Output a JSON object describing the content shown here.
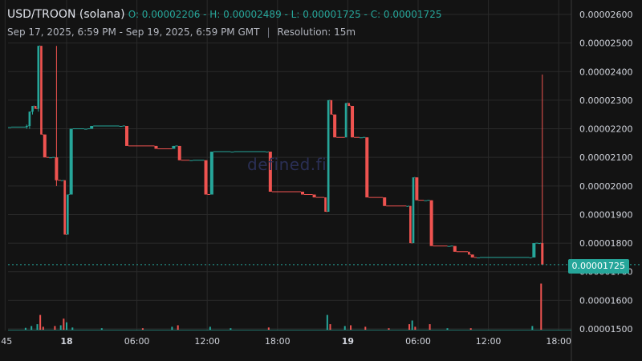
{
  "header": {
    "pair": "USD/TROON (solana)",
    "ohlc": "O: 0.00002206 - H: 0.00002489 - L: 0.00001725 - C: 0.00001725",
    "date_range": "Sep 17, 2025, 6:59 PM - Sep 19, 2025, 6:59 PM GMT",
    "separator": "|",
    "resolution": "Resolution: 15m"
  },
  "watermark": "defined.fi",
  "last_price_label": "0.00001725",
  "colors": {
    "up": "#26a69a",
    "down": "#ef5350",
    "bg": "#131313",
    "grid": "#2a2a2a",
    "axis_text": "#d1d4dc"
  },
  "chart_data": {
    "type": "candlestick",
    "title": "USD/TROON (solana)",
    "resolution": "15m",
    "ylim": [
      1.5e-05,
      2.62e-05
    ],
    "y_ticks": [
      "0.00001500",
      "0.00001600",
      "0.00001700",
      "0.00001800",
      "0.00001900",
      "0.00002000",
      "0.00002100",
      "0.00002200",
      "0.00002300",
      "0.00002400",
      "0.00002500",
      "0.00002600"
    ],
    "y_tick_values": [
      1.5e-05,
      1.6e-05,
      1.7e-05,
      1.8e-05,
      1.9e-05,
      2e-05,
      2.1e-05,
      2.2e-05,
      2.3e-05,
      2.4e-05,
      2.5e-05,
      2.6e-05
    ],
    "x_ticks": [
      ":45",
      "18",
      "06:00",
      "12:00",
      "18:00",
      "19",
      "06:00",
      "12:00",
      "18:00"
    ],
    "x_tick_hours": [
      -0.25,
      5,
      11,
      17,
      23,
      29,
      35,
      41,
      47
    ],
    "bold_x_ticks": [
      "18",
      "19"
    ],
    "last_price": 1.725e-05,
    "grid": true,
    "candles": [
      {
        "h": 0,
        "o": 2.206e-05,
        "hi": 2.206e-05,
        "lo": 2.206e-05,
        "c": 2.206e-05
      },
      {
        "h": 1.5,
        "o": 2.206e-05,
        "hi": 2.215e-05,
        "lo": 2.2e-05,
        "c": 2.21e-05
      },
      {
        "h": 1.75,
        "o": 2.21e-05,
        "hi": 2.26e-05,
        "lo": 2.2e-05,
        "c": 2.26e-05
      },
      {
        "h": 2.0,
        "o": 2.26e-05,
        "hi": 2.28e-05,
        "lo": 2.25e-05,
        "c": 2.28e-05
      },
      {
        "h": 2.25,
        "o": 2.28e-05,
        "hi": 2.28e-05,
        "lo": 2.27e-05,
        "c": 2.27e-05
      },
      {
        "h": 2.5,
        "o": 2.27e-05,
        "hi": 2.49e-05,
        "lo": 2.26e-05,
        "c": 2.49e-05
      },
      {
        "h": 2.75,
        "o": 2.49e-05,
        "hi": 2.49e-05,
        "lo": 2.18e-05,
        "c": 2.18e-05
      },
      {
        "h": 3.0,
        "o": 2.18e-05,
        "hi": 2.18e-05,
        "lo": 2.1e-05,
        "c": 2.1e-05
      },
      {
        "h": 3.5,
        "o": 2.1e-05,
        "hi": 2.1e-05,
        "lo": 2.1e-05,
        "c": 2.1e-05
      },
      {
        "h": 4.0,
        "o": 2.1e-05,
        "hi": 2.49e-05,
        "lo": 2e-05,
        "c": 2.02e-05
      },
      {
        "h": 4.5,
        "o": 2.02e-05,
        "hi": 2.02e-05,
        "lo": 2.02e-05,
        "c": 2.02e-05
      },
      {
        "h": 4.75,
        "o": 2.02e-05,
        "hi": 2.02e-05,
        "lo": 1.83e-05,
        "c": 1.83e-05
      },
      {
        "h": 5.0,
        "o": 1.83e-05,
        "hi": 1.97e-05,
        "lo": 1.83e-05,
        "c": 1.97e-05
      },
      {
        "h": 5.25,
        "o": 1.97e-05,
        "hi": 2.2e-05,
        "lo": 1.97e-05,
        "c": 2.2e-05
      },
      {
        "h": 6.5,
        "o": 2.2e-05,
        "hi": 2.2e-05,
        "lo": 2.2e-05,
        "c": 2.2e-05
      },
      {
        "h": 7.0,
        "o": 2.2e-05,
        "hi": 2.21e-05,
        "lo": 2.2e-05,
        "c": 2.21e-05
      },
      {
        "h": 9.5,
        "o": 2.21e-05,
        "hi": 2.21e-05,
        "lo": 2.21e-05,
        "c": 2.21e-05
      },
      {
        "h": 10.0,
        "o": 2.21e-05,
        "hi": 2.21e-05,
        "lo": 2.14e-05,
        "c": 2.14e-05
      },
      {
        "h": 12.5,
        "o": 2.14e-05,
        "hi": 2.14e-05,
        "lo": 2.13e-05,
        "c": 2.13e-05
      },
      {
        "h": 14.0,
        "o": 2.13e-05,
        "hi": 2.14e-05,
        "lo": 2.13e-05,
        "c": 2.14e-05
      },
      {
        "h": 14.5,
        "o": 2.14e-05,
        "hi": 2.14e-05,
        "lo": 2.09e-05,
        "c": 2.09e-05
      },
      {
        "h": 15.5,
        "o": 2.09e-05,
        "hi": 2.09e-05,
        "lo": 2.09e-05,
        "c": 2.09e-05
      },
      {
        "h": 16.75,
        "o": 2.09e-05,
        "hi": 2.09e-05,
        "lo": 1.97e-05,
        "c": 1.97e-05
      },
      {
        "h": 17.25,
        "o": 1.97e-05,
        "hi": 2.12e-05,
        "lo": 1.97e-05,
        "c": 2.12e-05
      },
      {
        "h": 19.0,
        "o": 2.12e-05,
        "hi": 2.12e-05,
        "lo": 2.12e-05,
        "c": 2.12e-05
      },
      {
        "h": 22.0,
        "o": 2.12e-05,
        "hi": 2.12e-05,
        "lo": 2.12e-05,
        "c": 2.12e-05
      },
      {
        "h": 22.25,
        "o": 2.12e-05,
        "hi": 2.12e-05,
        "lo": 1.98e-05,
        "c": 1.98e-05
      },
      {
        "h": 25.0,
        "o": 1.98e-05,
        "hi": 1.98e-05,
        "lo": 1.97e-05,
        "c": 1.97e-05
      },
      {
        "h": 26.0,
        "o": 1.97e-05,
        "hi": 1.97e-05,
        "lo": 1.96e-05,
        "c": 1.96e-05
      },
      {
        "h": 27.0,
        "o": 1.96e-05,
        "hi": 1.96e-05,
        "lo": 1.91e-05,
        "c": 1.91e-05
      },
      {
        "h": 27.25,
        "o": 1.91e-05,
        "hi": 2.3e-05,
        "lo": 1.91e-05,
        "c": 2.3e-05
      },
      {
        "h": 27.5,
        "o": 2.3e-05,
        "hi": 2.3e-05,
        "lo": 2.25e-05,
        "c": 2.25e-05
      },
      {
        "h": 27.75,
        "o": 2.25e-05,
        "hi": 2.25e-05,
        "lo": 2.17e-05,
        "c": 2.17e-05
      },
      {
        "h": 28.75,
        "o": 2.17e-05,
        "hi": 2.29e-05,
        "lo": 2.17e-05,
        "c": 2.29e-05
      },
      {
        "h": 29.0,
        "o": 2.29e-05,
        "hi": 2.29e-05,
        "lo": 2.28e-05,
        "c": 2.28e-05
      },
      {
        "h": 29.25,
        "o": 2.28e-05,
        "hi": 2.28e-05,
        "lo": 2.17e-05,
        "c": 2.17e-05
      },
      {
        "h": 30.0,
        "o": 2.17e-05,
        "hi": 2.17e-05,
        "lo": 2.17e-05,
        "c": 2.17e-05
      },
      {
        "h": 30.5,
        "o": 2.17e-05,
        "hi": 2.17e-05,
        "lo": 1.96e-05,
        "c": 1.96e-05
      },
      {
        "h": 32.0,
        "o": 1.96e-05,
        "hi": 1.96e-05,
        "lo": 1.93e-05,
        "c": 1.93e-05
      },
      {
        "h": 34.0,
        "o": 1.93e-05,
        "hi": 1.93e-05,
        "lo": 1.93e-05,
        "c": 1.93e-05
      },
      {
        "h": 34.25,
        "o": 1.93e-05,
        "hi": 1.93e-05,
        "lo": 1.8e-05,
        "c": 1.8e-05
      },
      {
        "h": 34.5,
        "o": 1.8e-05,
        "hi": 2.03e-05,
        "lo": 1.8e-05,
        "c": 2.03e-05
      },
      {
        "h": 34.75,
        "o": 2.03e-05,
        "hi": 2.03e-05,
        "lo": 1.95e-05,
        "c": 1.95e-05
      },
      {
        "h": 35.5,
        "o": 1.95e-05,
        "hi": 1.95e-05,
        "lo": 1.95e-05,
        "c": 1.95e-05
      },
      {
        "h": 36.0,
        "o": 1.95e-05,
        "hi": 1.95e-05,
        "lo": 1.79e-05,
        "c": 1.79e-05
      },
      {
        "h": 37.5,
        "o": 1.79e-05,
        "hi": 1.79e-05,
        "lo": 1.79e-05,
        "c": 1.79e-05
      },
      {
        "h": 38.0,
        "o": 1.79e-05,
        "hi": 1.79e-05,
        "lo": 1.77e-05,
        "c": 1.77e-05
      },
      {
        "h": 39.25,
        "o": 1.77e-05,
        "hi": 1.77e-05,
        "lo": 1.76e-05,
        "c": 1.76e-05
      },
      {
        "h": 39.5,
        "o": 1.76e-05,
        "hi": 1.76e-05,
        "lo": 1.75e-05,
        "c": 1.75e-05
      },
      {
        "h": 40.0,
        "o": 1.75e-05,
        "hi": 1.75e-05,
        "lo": 1.75e-05,
        "c": 1.75e-05
      },
      {
        "h": 44.5,
        "o": 1.75e-05,
        "hi": 1.75e-05,
        "lo": 1.75e-05,
        "c": 1.75e-05
      },
      {
        "h": 44.75,
        "o": 1.75e-05,
        "hi": 1.8e-05,
        "lo": 1.75e-05,
        "c": 1.8e-05
      },
      {
        "h": 45.25,
        "o": 1.8e-05,
        "hi": 1.8e-05,
        "lo": 1.8e-05,
        "c": 1.8e-05
      },
      {
        "h": 45.5,
        "o": 1.8e-05,
        "hi": 2.39e-05,
        "lo": 1.725e-05,
        "c": 1.725e-05
      }
    ],
    "volume": [
      {
        "h": 1.5,
        "v": 0.5
      },
      {
        "h": 2.0,
        "v": 1.0
      },
      {
        "h": 2.5,
        "v": 1.5
      },
      {
        "h": 2.75,
        "v": 4.0
      },
      {
        "h": 3.0,
        "v": 0.8
      },
      {
        "h": 4.0,
        "v": 1.0
      },
      {
        "h": 4.5,
        "v": 1.2
      },
      {
        "h": 4.75,
        "v": 3.0
      },
      {
        "h": 5.0,
        "v": 2.0
      },
      {
        "h": 5.5,
        "v": 0.6
      },
      {
        "h": 8.0,
        "v": 0.4
      },
      {
        "h": 11.5,
        "v": 0.4
      },
      {
        "h": 14.0,
        "v": 0.8
      },
      {
        "h": 14.5,
        "v": 1.2
      },
      {
        "h": 17.25,
        "v": 0.8
      },
      {
        "h": 19.0,
        "v": 0.4
      },
      {
        "h": 22.25,
        "v": 0.6
      },
      {
        "h": 27.25,
        "v": 4.0
      },
      {
        "h": 27.5,
        "v": 1.5
      },
      {
        "h": 28.75,
        "v": 1.0
      },
      {
        "h": 29.25,
        "v": 1.2
      },
      {
        "h": 30.5,
        "v": 0.8
      },
      {
        "h": 32.5,
        "v": 0.4
      },
      {
        "h": 34.25,
        "v": 1.5
      },
      {
        "h": 34.5,
        "v": 2.5
      },
      {
        "h": 34.75,
        "v": 0.8
      },
      {
        "h": 36.0,
        "v": 1.5
      },
      {
        "h": 37.5,
        "v": 0.4
      },
      {
        "h": 39.5,
        "v": 0.4
      },
      {
        "h": 44.75,
        "v": 1.0
      },
      {
        "h": 45.5,
        "v": 12.5
      }
    ]
  }
}
